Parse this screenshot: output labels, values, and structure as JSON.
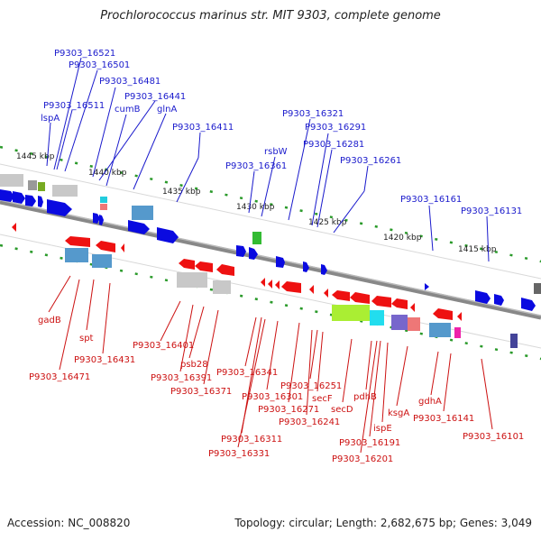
{
  "title": "Prochlorococcus marinus str. MIT 9303, complete genome",
  "footer": {
    "accession": "Accession: NC_008820",
    "topology": "Topology: circular; Length: 2,682,675 bp; Genes: 3,049"
  },
  "colors": {
    "forward_genes": "#0000ee",
    "reverse_genes": "#ee0000",
    "forward_labels": "#1a1acc",
    "reverse_labels": "#cc1111",
    "backbone": "#777777",
    "scale_ticks": "#228822"
  },
  "scale_labels": [
    "1445 kbp",
    "1440 kbp",
    "1435 kbp",
    "1430 kbp",
    "1425 kbp",
    "1420 kbp",
    "1415 kbp"
  ],
  "forward_labels": [
    "P9303_16521",
    "P9303_16501",
    "P9303_16481",
    "P9303_16441",
    "P9303_16511",
    "cumB",
    "glnA",
    "lspA",
    "P9303_16411",
    "P9303_16321",
    "P9303_16291",
    "P9303_16281",
    "rsbW",
    "P9303_16361",
    "P9303_16261",
    "P9303_16161",
    "P9303_16131"
  ],
  "reverse_labels": [
    "gadB",
    "spt",
    "P9303_16471",
    "P9303_16431",
    "P9303_16401",
    "psb28",
    "P9303_16391",
    "P9303_16371",
    "P9303_16341",
    "P9303_16301",
    "P9303_16271",
    "P9303_16251",
    "secF",
    "P9303_16241",
    "secD",
    "pdhB",
    "ispE",
    "ksgA",
    "gdhA",
    "P9303_16141",
    "P9303_16311",
    "P9303_16331",
    "P9303_16191",
    "P9303_16201",
    "P9303_16101"
  ]
}
